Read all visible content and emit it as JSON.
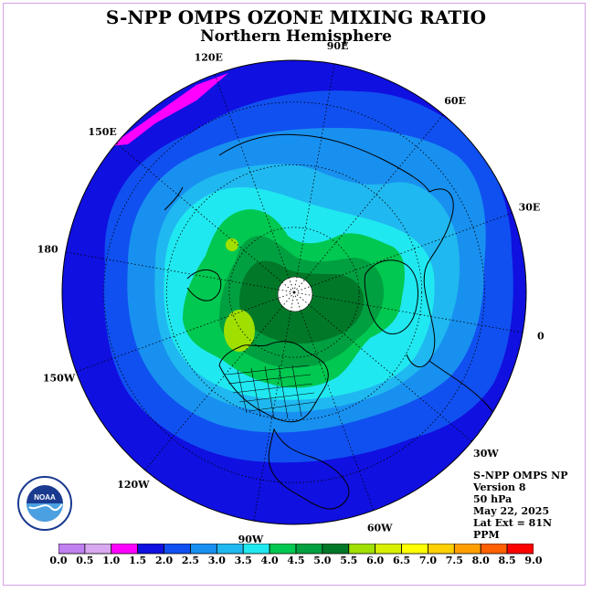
{
  "title": "S-NPP OMPS OZONE MIXING RATIO",
  "subtitle": "Northern Hemisphere",
  "longitude_labels": [
    "90E",
    "60E",
    "30E",
    "0",
    "30W",
    "60W",
    "90W",
    "120W",
    "150W",
    "180",
    "150E",
    "120E"
  ],
  "info": {
    "instrument": "S-NPP OMPS NP",
    "version": "Version 8",
    "level": "50 hPa",
    "date": "May 22, 2025",
    "lat_ext": "Lat Ext = 81N",
    "units": "PPM"
  },
  "logo": {
    "text": "NOAA",
    "ring_text": "NATIONAL OCEANIC AND ATMOSPHERIC ADMINISTRATION U.S. DEPARTMENT OF COMMERCE"
  },
  "colorbar": {
    "ticks": [
      "0.0",
      "0.5",
      "1.0",
      "1.5",
      "2.0",
      "2.5",
      "3.0",
      "3.5",
      "4.0",
      "4.5",
      "5.0",
      "5.5",
      "6.0",
      "6.5",
      "7.0",
      "7.5",
      "8.0",
      "8.5",
      "9.0"
    ],
    "colors": [
      "#c080f0",
      "#d8a8f0",
      "#ff00ff",
      "#1010e0",
      "#1050f0",
      "#1890f0",
      "#20b8f0",
      "#20e8f0",
      "#00c850",
      "#00a040",
      "#007828",
      "#a0e000",
      "#d8f000",
      "#ffff00",
      "#ffd000",
      "#ffa000",
      "#ff6000",
      "#ff0000",
      "#8b4513"
    ]
  },
  "map": {
    "projection": "north-polar-stereographic",
    "ozone_levels_ppm": [
      1.0,
      1.5,
      2.0,
      2.5,
      3.0,
      3.5,
      4.0,
      4.5,
      5.0,
      5.5
    ],
    "no_data_pole": true
  }
}
